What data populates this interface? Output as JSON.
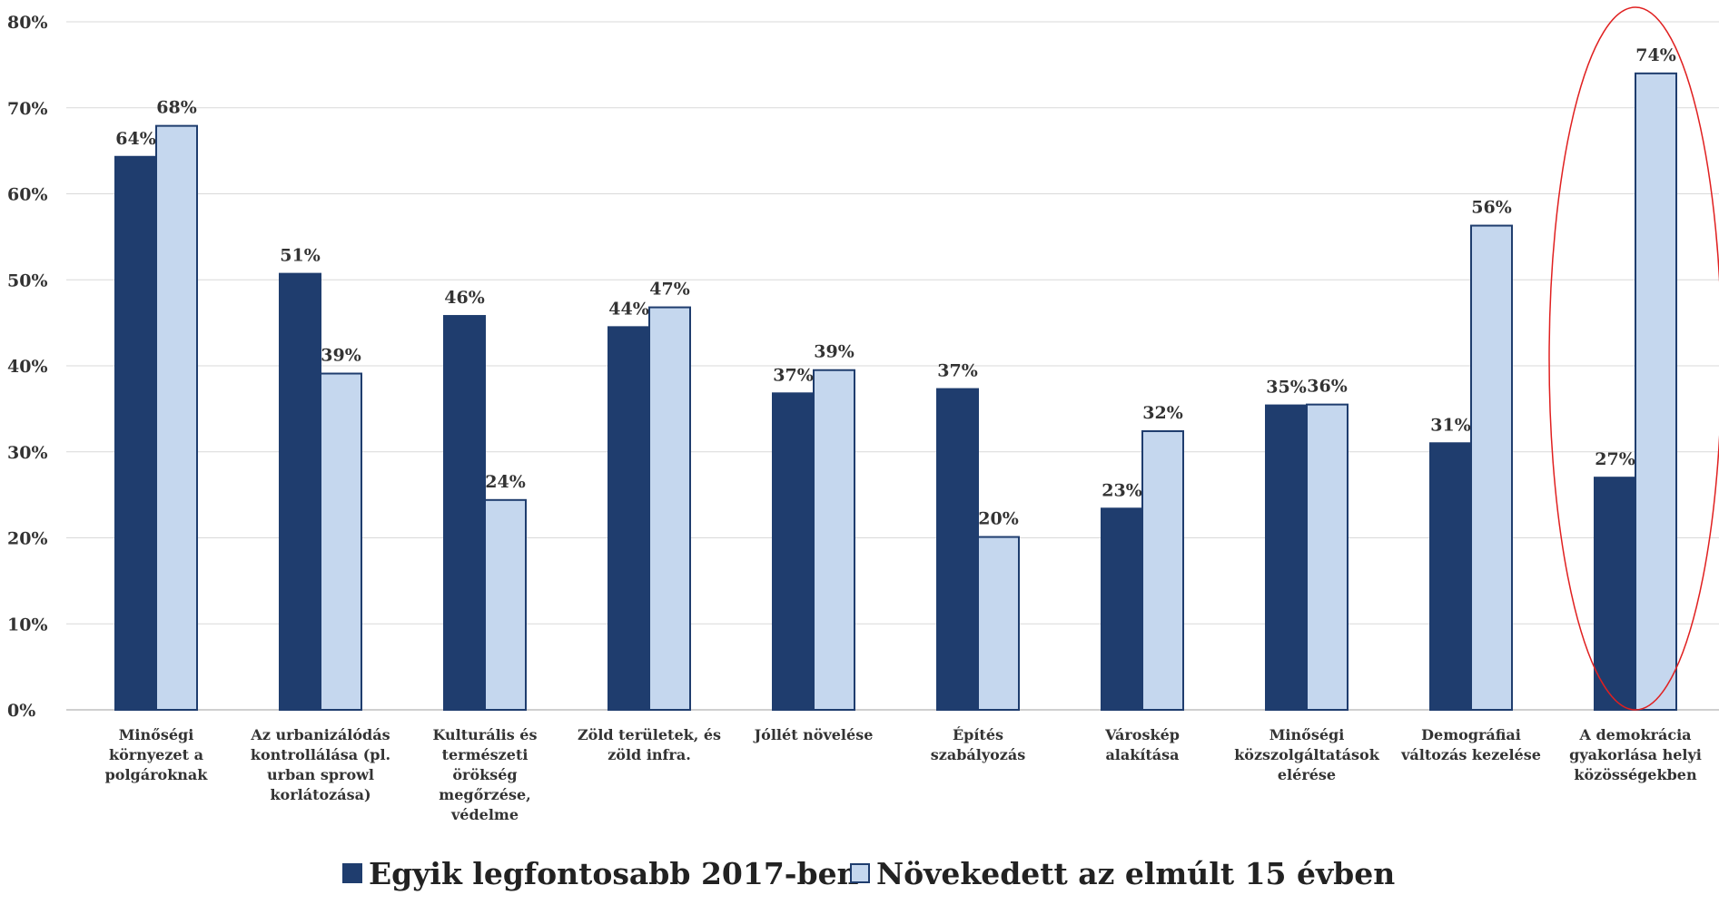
{
  "chart_data": {
    "type": "bar",
    "ylim": [
      0,
      80
    ],
    "ytick_labels": [
      "0%",
      "10%",
      "20%",
      "30%",
      "40%",
      "50%",
      "60%",
      "70%",
      "80%"
    ],
    "categories": [
      [
        "Minőségi",
        "környezet a",
        "polgároknak"
      ],
      [
        "Az urbanizálódás",
        "kontrollálása (pl.",
        "urban sprowl",
        "korlátozása)"
      ],
      [
        "Kulturális és",
        "természeti",
        "örökség",
        "megőrzése,",
        "védelme"
      ],
      [
        "Zöld területek, és",
        "zöld infra."
      ],
      [
        "Jóllét növelése"
      ],
      [
        "Építés",
        "szabályozás"
      ],
      [
        "Városkép",
        "alakítása"
      ],
      [
        "Minőségi",
        "közszolgáltatások",
        "elérése"
      ],
      [
        "Demográfiai",
        "változás kezelése"
      ],
      [
        "A demokrácia",
        "gyakorlása helyi",
        "közösségekben"
      ]
    ],
    "series": [
      {
        "name": "Egyik legfontosabb 2017-ben",
        "color": "#1f3d6e",
        "values": [
          64.3,
          50.7,
          45.8,
          44.5,
          36.8,
          37.3,
          23.4,
          35.4,
          31.0,
          27.0
        ],
        "labels": [
          "64%",
          "51%",
          "46%",
          "44%",
          "37%",
          "37%",
          "23%",
          "35%",
          "31%",
          "27%"
        ]
      },
      {
        "name": "Növekedett az elmúlt 15 évben",
        "color": "#c5d7ee",
        "values": [
          67.9,
          39.1,
          24.4,
          46.8,
          39.5,
          20.1,
          32.4,
          35.5,
          56.3,
          74.0
        ],
        "labels": [
          "68%",
          "39%",
          "24%",
          "47%",
          "39%",
          "20%",
          "32%",
          "36%",
          "56%",
          "74%"
        ]
      }
    ],
    "grid": true,
    "legend_position": "bottom",
    "annotation": {
      "type": "ellipse",
      "color": "#e02020",
      "highlight_category_index": 9
    }
  }
}
